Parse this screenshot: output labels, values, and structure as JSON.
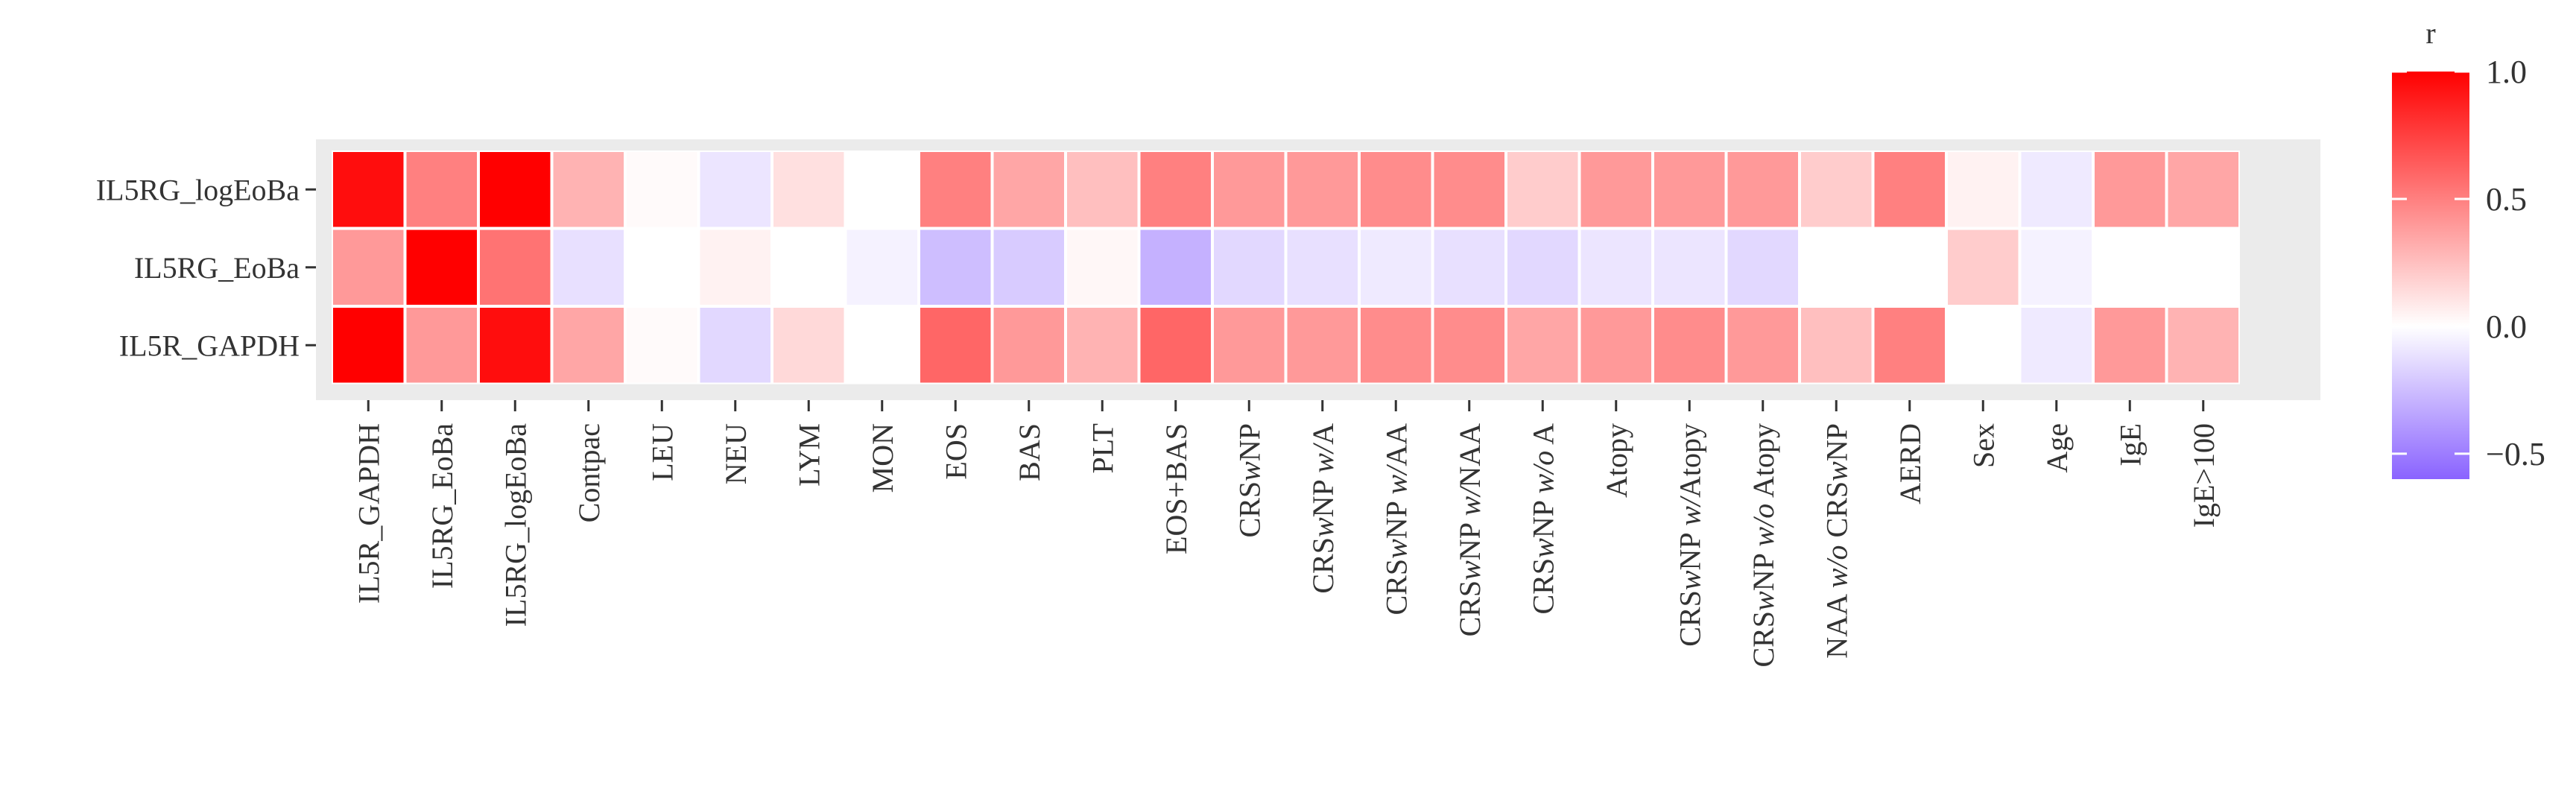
{
  "chart_data": {
    "type": "heatmap",
    "title": "",
    "xlabel": "",
    "ylabel": "",
    "rows": [
      "IL5RG_logEoBa",
      "IL5RG_EoBa",
      "IL5R_GAPDH"
    ],
    "columns": [
      {
        "parts": [
          {
            "t": "IL5R_GAPDH",
            "i": false
          }
        ]
      },
      {
        "parts": [
          {
            "t": "IL5RG_EoBa",
            "i": false
          }
        ]
      },
      {
        "parts": [
          {
            "t": "IL5RG_logEoBa",
            "i": false
          }
        ]
      },
      {
        "parts": [
          {
            "t": "Contpac",
            "i": false
          }
        ]
      },
      {
        "parts": [
          {
            "t": "LEU",
            "i": false
          }
        ]
      },
      {
        "parts": [
          {
            "t": "NEU",
            "i": false
          }
        ]
      },
      {
        "parts": [
          {
            "t": "LYM",
            "i": false
          }
        ]
      },
      {
        "parts": [
          {
            "t": "MON",
            "i": false
          }
        ]
      },
      {
        "parts": [
          {
            "t": "EOS",
            "i": false
          }
        ]
      },
      {
        "parts": [
          {
            "t": "BAS",
            "i": false
          }
        ]
      },
      {
        "parts": [
          {
            "t": "PLT",
            "i": false
          }
        ]
      },
      {
        "parts": [
          {
            "t": "EOS+BAS",
            "i": false
          }
        ]
      },
      {
        "parts": [
          {
            "t": "CRS",
            "i": false
          },
          {
            "t": "w",
            "i": true
          },
          {
            "t": "NP",
            "i": false
          }
        ]
      },
      {
        "parts": [
          {
            "t": "CRS",
            "i": false
          },
          {
            "t": "w",
            "i": true
          },
          {
            "t": "NP ",
            "i": false
          },
          {
            "t": "w/",
            "i": true
          },
          {
            "t": "A",
            "i": false
          }
        ]
      },
      {
        "parts": [
          {
            "t": "CRS",
            "i": false
          },
          {
            "t": "w",
            "i": true
          },
          {
            "t": "NP ",
            "i": false
          },
          {
            "t": "w/",
            "i": true
          },
          {
            "t": "AA",
            "i": false
          }
        ]
      },
      {
        "parts": [
          {
            "t": "CRS",
            "i": false
          },
          {
            "t": "w",
            "i": true
          },
          {
            "t": "NP ",
            "i": false
          },
          {
            "t": "w/",
            "i": true
          },
          {
            "t": "NAA",
            "i": false
          }
        ]
      },
      {
        "parts": [
          {
            "t": "CRS",
            "i": false
          },
          {
            "t": "w",
            "i": true
          },
          {
            "t": "NP ",
            "i": false
          },
          {
            "t": "w/o",
            "i": true
          },
          {
            "t": " A",
            "i": false
          }
        ]
      },
      {
        "parts": [
          {
            "t": "Atopy",
            "i": false
          }
        ]
      },
      {
        "parts": [
          {
            "t": "CRS",
            "i": false
          },
          {
            "t": "w",
            "i": true
          },
          {
            "t": "NP ",
            "i": false
          },
          {
            "t": "w/",
            "i": true
          },
          {
            "t": "Atopy",
            "i": false
          }
        ]
      },
      {
        "parts": [
          {
            "t": "CRS",
            "i": false
          },
          {
            "t": "w",
            "i": true
          },
          {
            "t": "NP ",
            "i": false
          },
          {
            "t": "w/o",
            "i": true
          },
          {
            "t": " Atopy",
            "i": false
          }
        ]
      },
      {
        "parts": [
          {
            "t": "NAA ",
            "i": false
          },
          {
            "t": "w/o",
            "i": true
          },
          {
            "t": " CRS",
            "i": false
          },
          {
            "t": "w",
            "i": true
          },
          {
            "t": "NP",
            "i": false
          }
        ]
      },
      {
        "parts": [
          {
            "t": "AERD",
            "i": false
          }
        ]
      },
      {
        "parts": [
          {
            "t": "Sex",
            "i": false
          }
        ]
      },
      {
        "parts": [
          {
            "t": "Age",
            "i": false
          }
        ]
      },
      {
        "parts": [
          {
            "t": "IgE",
            "i": false
          }
        ]
      },
      {
        "parts": [
          {
            "t": "IgE>100",
            "i": false
          }
        ]
      }
    ],
    "values": [
      [
        0.95,
        0.5,
        1.0,
        0.3,
        0.02,
        -0.1,
        0.12,
        0.0,
        0.5,
        0.35,
        0.25,
        0.5,
        0.4,
        0.4,
        0.45,
        0.45,
        0.2,
        0.4,
        0.4,
        0.4,
        0.2,
        0.5,
        0.05,
        -0.08,
        0.4,
        0.35
      ],
      [
        0.4,
        1.0,
        0.55,
        -0.12,
        0.0,
        0.05,
        0.0,
        -0.05,
        -0.25,
        -0.2,
        0.03,
        -0.3,
        -0.15,
        -0.12,
        -0.08,
        -0.12,
        -0.15,
        -0.1,
        -0.1,
        -0.15,
        0.0,
        0.0,
        0.2,
        -0.05,
        0.0,
        0.0
      ],
      [
        1.0,
        0.4,
        0.95,
        0.35,
        0.02,
        -0.15,
        0.15,
        0.0,
        0.6,
        0.4,
        0.3,
        0.6,
        0.4,
        0.4,
        0.45,
        0.45,
        0.35,
        0.4,
        0.45,
        0.4,
        0.25,
        0.5,
        0.0,
        -0.08,
        0.4,
        0.3
      ]
    ],
    "colorbar": {
      "title": "r",
      "range": [
        -0.6,
        1.0
      ],
      "ticks": [
        "1.0",
        "0.5",
        "0.0",
        "−0.5"
      ],
      "tick_values": [
        1.0,
        0.5,
        0.0,
        -0.5
      ],
      "low_color": "#8a63ff",
      "mid_color": "#ffffff",
      "high_color": "#ff0000"
    },
    "panel_background": "#ebebeb",
    "grid": false,
    "legend_position": "right"
  }
}
